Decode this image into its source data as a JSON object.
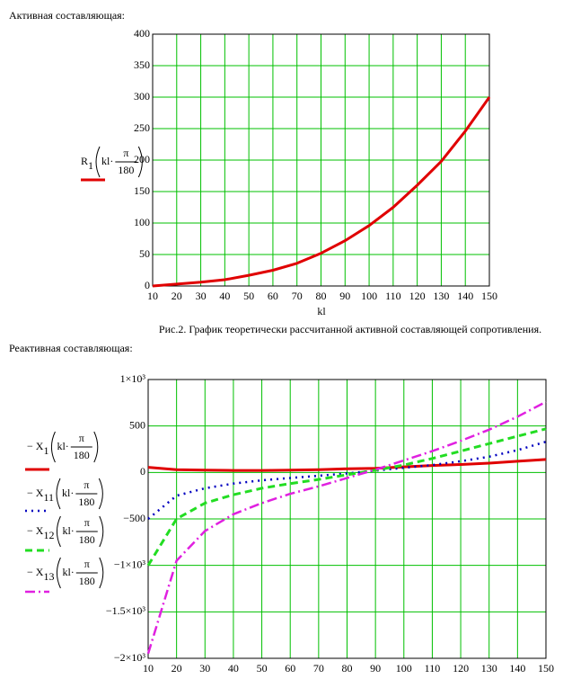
{
  "chart_data": [
    {
      "type": "line",
      "heading": "Активная составляющая:",
      "x_label": "kl",
      "caption": "Рис.2. График теоретически рассчитанной активной составляющей сопротивления.",
      "argument": {
        "prefix": "kl·",
        "numerator": "π",
        "denominator": "180"
      },
      "x": [
        10,
        20,
        30,
        40,
        50,
        60,
        70,
        80,
        90,
        100,
        110,
        120,
        130,
        140,
        150
      ],
      "xlim": [
        10,
        150
      ],
      "xticks": [
        10,
        20,
        30,
        40,
        50,
        60,
        70,
        80,
        90,
        100,
        110,
        120,
        130,
        140,
        150
      ],
      "ylim": [
        0,
        400
      ],
      "yticks": [
        0,
        50,
        100,
        150,
        200,
        250,
        300,
        350,
        400
      ],
      "grid": true,
      "grid_color": "#00c000",
      "series": [
        {
          "name": "R",
          "subscript": "1",
          "color": "#e00000",
          "style": "solid",
          "values": [
            0,
            3,
            6,
            10,
            17,
            25,
            36,
            52,
            72,
            96,
            125,
            160,
            198,
            246,
            300
          ]
        }
      ]
    },
    {
      "type": "line",
      "heading": "Реактивная составляющая:",
      "argument": {
        "prefix": "kl·",
        "numerator": "π",
        "denominator": "180"
      },
      "x": [
        10,
        20,
        30,
        40,
        50,
        60,
        70,
        80,
        90,
        100,
        110,
        120,
        130,
        140,
        150
      ],
      "xlim": [
        10,
        150
      ],
      "xticks": [
        10,
        20,
        30,
        40,
        50,
        60,
        70,
        80,
        90,
        100,
        110,
        120,
        130,
        140,
        150
      ],
      "ylim": [
        -2000,
        1000
      ],
      "yticks": [
        {
          "value": -2000,
          "label": "−2×10³"
        },
        {
          "value": -1500,
          "label": "−1.5×10³"
        },
        {
          "value": -1000,
          "label": "−1×10³"
        },
        {
          "value": -500,
          "label": "−500"
        },
        0,
        500,
        {
          "value": 1000,
          "label": "1×10³"
        }
      ],
      "grid": true,
      "grid_color": "#00c000",
      "series": [
        {
          "name": "− X",
          "subscript": "1",
          "color": "#e00000",
          "style": "solid",
          "values": [
            55,
            30,
            25,
            22,
            22,
            25,
            30,
            40,
            45,
            60,
            75,
            85,
            100,
            120,
            140
          ]
        },
        {
          "name": "− X",
          "subscript": "11",
          "color": "#0000c0",
          "style": "dotted",
          "values": [
            -500,
            -250,
            -170,
            -120,
            -85,
            -60,
            -35,
            -10,
            20,
            50,
            80,
            120,
            170,
            240,
            330
          ]
        },
        {
          "name": "− X",
          "subscript": "12",
          "color": "#22dd22",
          "style": "dashed",
          "values": [
            -1000,
            -500,
            -330,
            -240,
            -170,
            -120,
            -75,
            -25,
            25,
            80,
            150,
            230,
            310,
            390,
            470
          ]
        },
        {
          "name": "− X",
          "subscript": "13",
          "color": "#e020e0",
          "style": "dashdot",
          "values": [
            -1950,
            -950,
            -630,
            -450,
            -330,
            -230,
            -150,
            -60,
            30,
            130,
            230,
            340,
            460,
            600,
            760
          ]
        }
      ]
    }
  ]
}
